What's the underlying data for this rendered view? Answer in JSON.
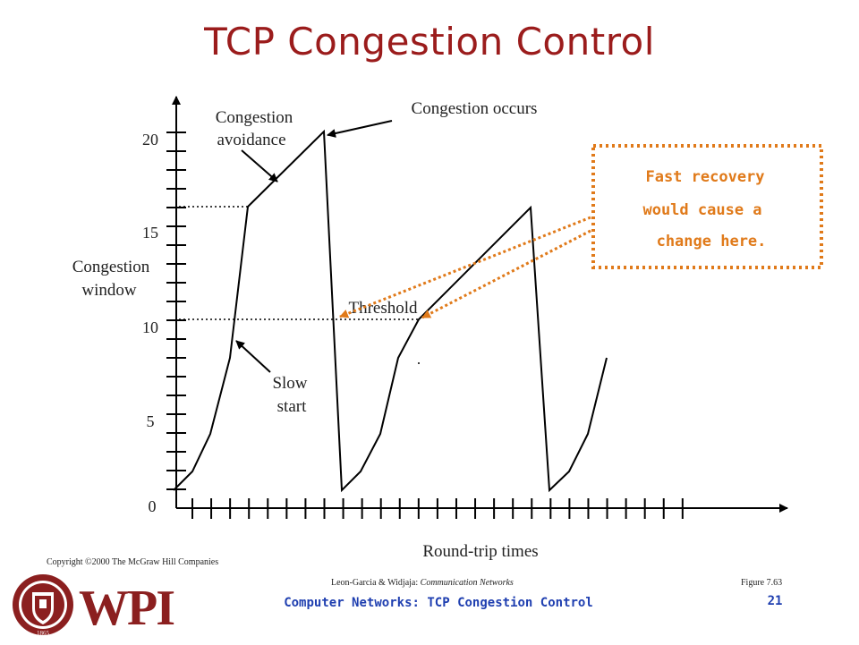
{
  "slide": {
    "title": "TCP Congestion Control"
  },
  "diagram": {
    "y_axis_label_line1": "Congestion",
    "y_axis_label_line2": "window",
    "x_axis_label": "Round-trip times",
    "y_ticks": [
      "0",
      "5",
      "10",
      "15",
      "20"
    ],
    "annotations": {
      "congestion_avoidance_line1": "Congestion",
      "congestion_avoidance_line2": "avoidance",
      "congestion_occurs": "Congestion occurs",
      "threshold": "Threshold",
      "slow_start_line1": "Slow",
      "slow_start_line2": "start"
    },
    "callout": {
      "line1": "Fast recovery",
      "line2": "would cause a",
      "line3": "change here."
    },
    "colors": {
      "callout": "#e07a1a",
      "title": "#9b1c1c",
      "footer": "#1f3fb0"
    }
  },
  "footer": {
    "copyright": "Copyright ©2000 The McGraw Hill Companies",
    "citation_authors": "Leon-Garcia & Widjaja: ",
    "citation_book": "Communication Networks",
    "figure_ref": "Figure 7.63",
    "course_title": "Computer Networks: TCP Congestion Control",
    "page_number": "21"
  },
  "logo": {
    "text": "WPI",
    "seal_years": "1865"
  }
}
